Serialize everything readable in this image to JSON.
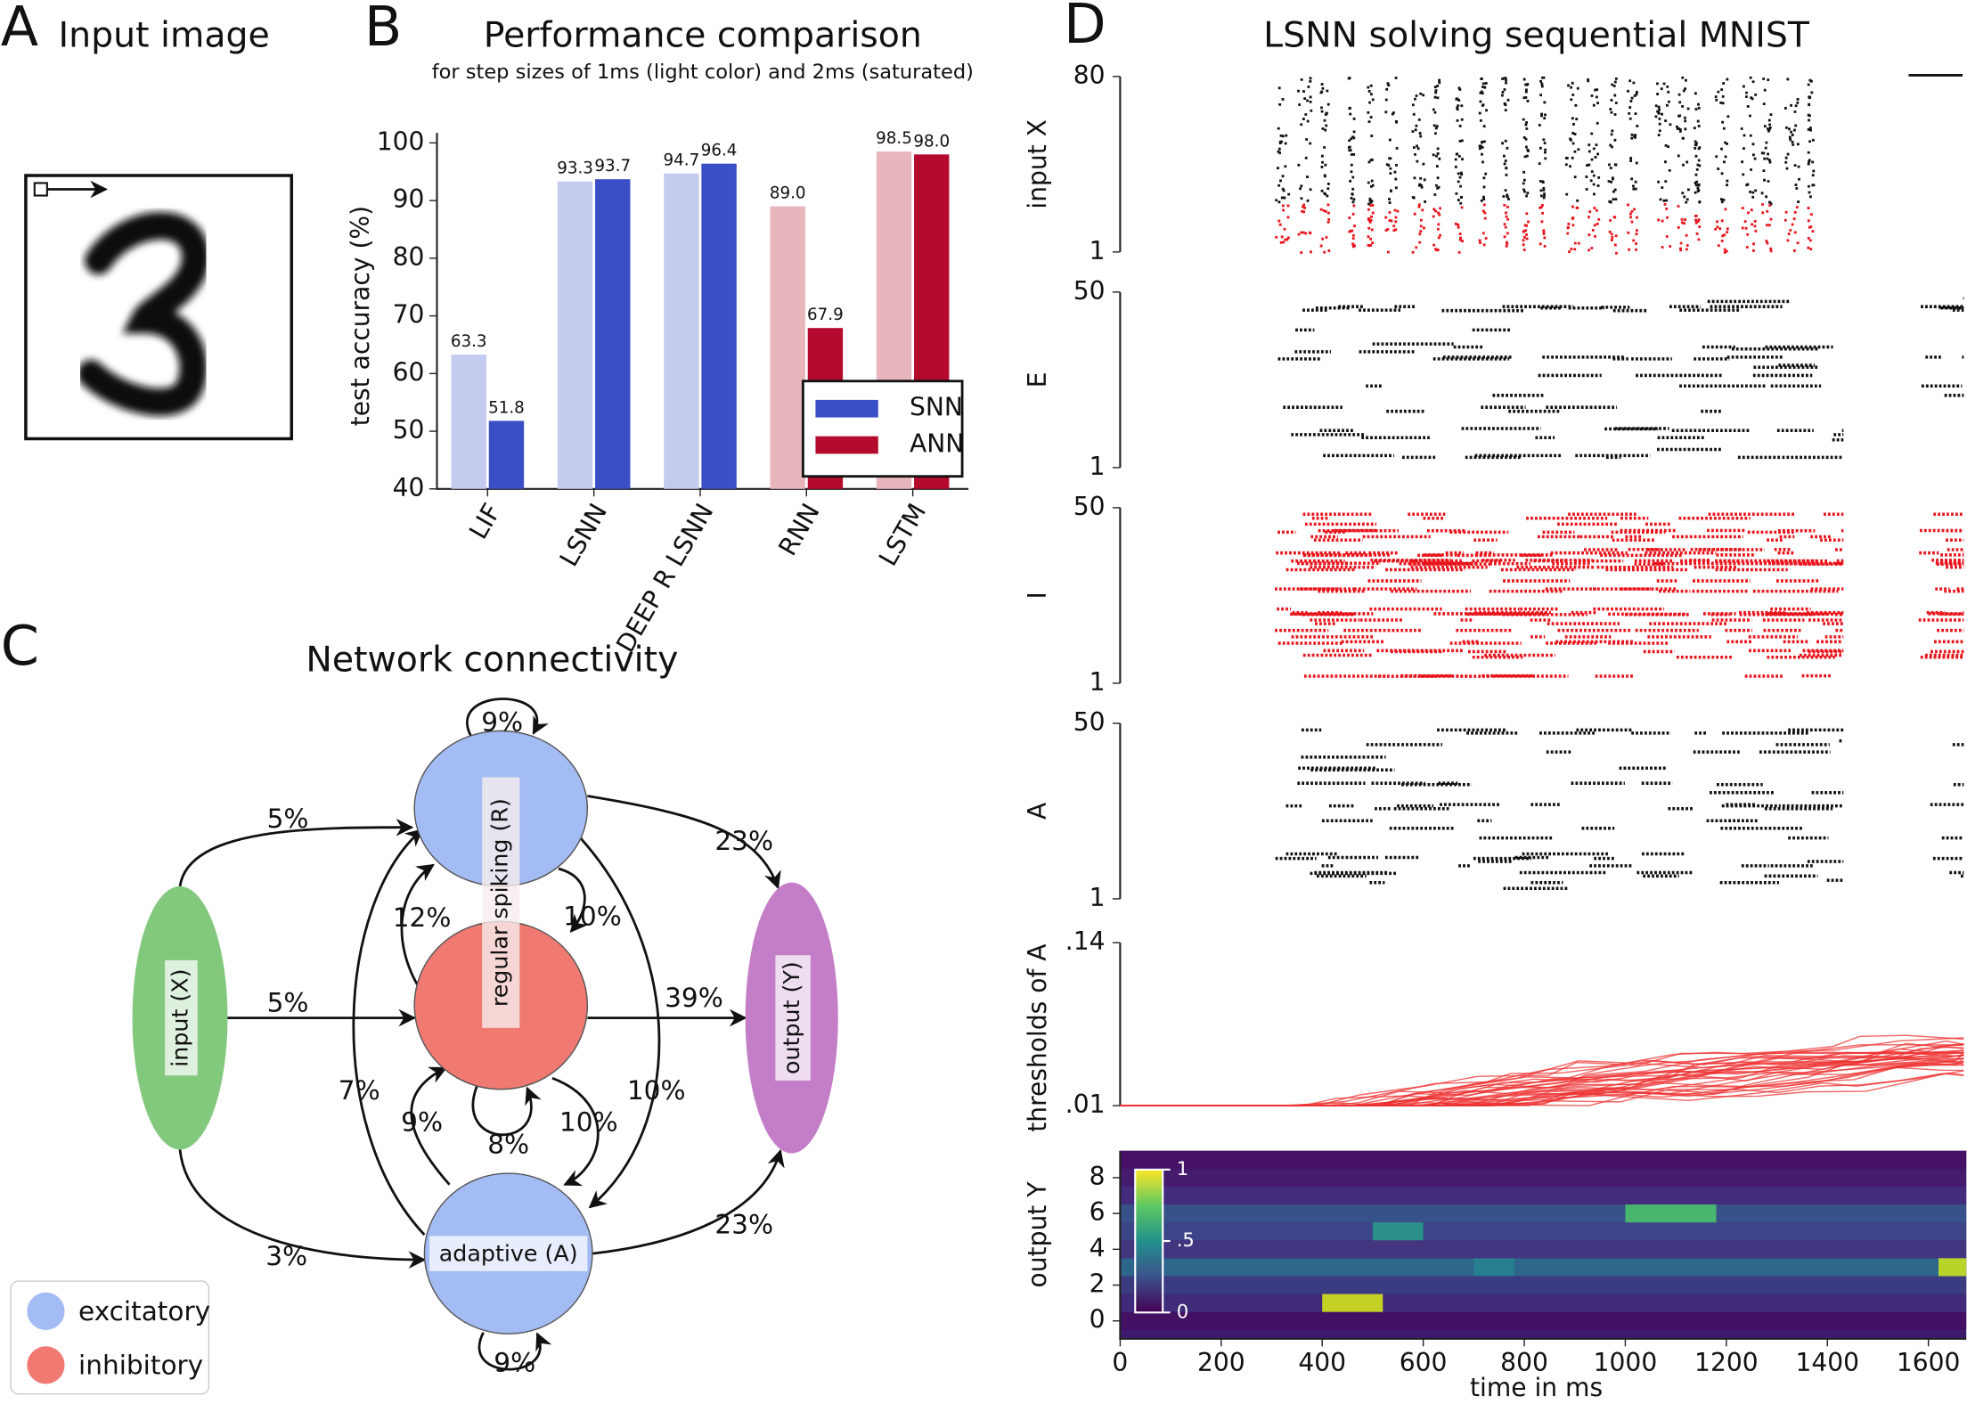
{
  "panel_a": {
    "letter": "A",
    "title": "Input image"
  },
  "chart_data": [
    {
      "type": "bar",
      "letter": "B",
      "title": "Performance comparison",
      "subtitle": "for step sizes of 1ms (light color) and 2ms (saturated)",
      "ylabel": "test accuracy (%)",
      "categories": [
        "LIF",
        "LSNN",
        "DEEP R LSNN",
        "RNN",
        "LSTM"
      ],
      "series": [
        {
          "values": [
            63.3,
            93.3,
            94.7,
            89.0,
            98.5
          ],
          "value_labels": [
            "63.3",
            "93.3",
            "94.7",
            "89.0",
            "98.5"
          ],
          "colors": [
            "#c3cbee",
            "#c3cbee",
            "#c3cbee",
            "#e9b5bd",
            "#e9b5bd"
          ]
        },
        {
          "values": [
            51.8,
            93.7,
            96.4,
            67.9,
            98.0
          ],
          "value_labels": [
            "51.8",
            "93.7",
            "96.4",
            "67.9",
            "98.0"
          ],
          "colors": [
            "#3a4ec6",
            "#3a4ec6",
            "#3a4ec6",
            "#b40a2e",
            "#b40a2e"
          ]
        }
      ],
      "ylim": [
        40,
        100
      ],
      "yticks": [
        40,
        50,
        60,
        70,
        80,
        90,
        100
      ],
      "legend": {
        "position": "lower right",
        "entries": [
          {
            "name": "SNN",
            "color": "#3a4ec6"
          },
          {
            "name": "ANN",
            "color": "#b40a2e"
          }
        ]
      }
    },
    {
      "type": "raster",
      "letter": "D",
      "title": "LSNN solving sequential MNIST",
      "panels": [
        {
          "label": "input X",
          "ylim": [
            1,
            80
          ],
          "yticks": [
            80,
            1
          ]
        },
        {
          "label": "E",
          "ylim": [
            1,
            50
          ],
          "yticks": [
            50,
            1
          ]
        },
        {
          "label": "I",
          "ylim": [
            1,
            50
          ],
          "yticks": [
            50,
            1
          ]
        },
        {
          "label": "A",
          "ylim": [
            1,
            50
          ],
          "yticks": [
            50,
            1
          ]
        }
      ],
      "thresholds": {
        "label": "thresholds of A",
        "ylim": [
          0.01,
          0.14
        ],
        "yticks": [
          {
            "value": 0.14,
            "label": ".14"
          },
          {
            "value": 0.01,
            "label": ".01"
          }
        ]
      },
      "heatmap": {
        "ylabel": "output Y",
        "xlabel": "time in ms",
        "xlim": [
          0,
          1675
        ],
        "xticks": [
          0,
          200,
          400,
          600,
          800,
          1000,
          1200,
          1400,
          1600
        ],
        "ylim": [
          -1,
          9.5
        ],
        "yticks": [
          0,
          2,
          4,
          6,
          8
        ],
        "colorbar_ticks": [
          1,
          {
            "value": 0.5,
            "label": ".5"
          },
          0
        ]
      }
    }
  ],
  "diagram": {
    "letter": "C",
    "title": "Network connectivity",
    "nodes": [
      "input (X)",
      "regular spiking (R)",
      "adaptive (A)",
      "output (Y)"
    ],
    "edges": [
      "9%",
      "5%",
      "23%",
      "12%",
      "10%",
      "5%",
      "39%",
      "7%",
      "10%",
      "9%",
      "8%",
      "10%",
      "3%",
      "23%",
      "9%"
    ],
    "legend": [
      "excitatory",
      "inhibitory"
    ]
  }
}
